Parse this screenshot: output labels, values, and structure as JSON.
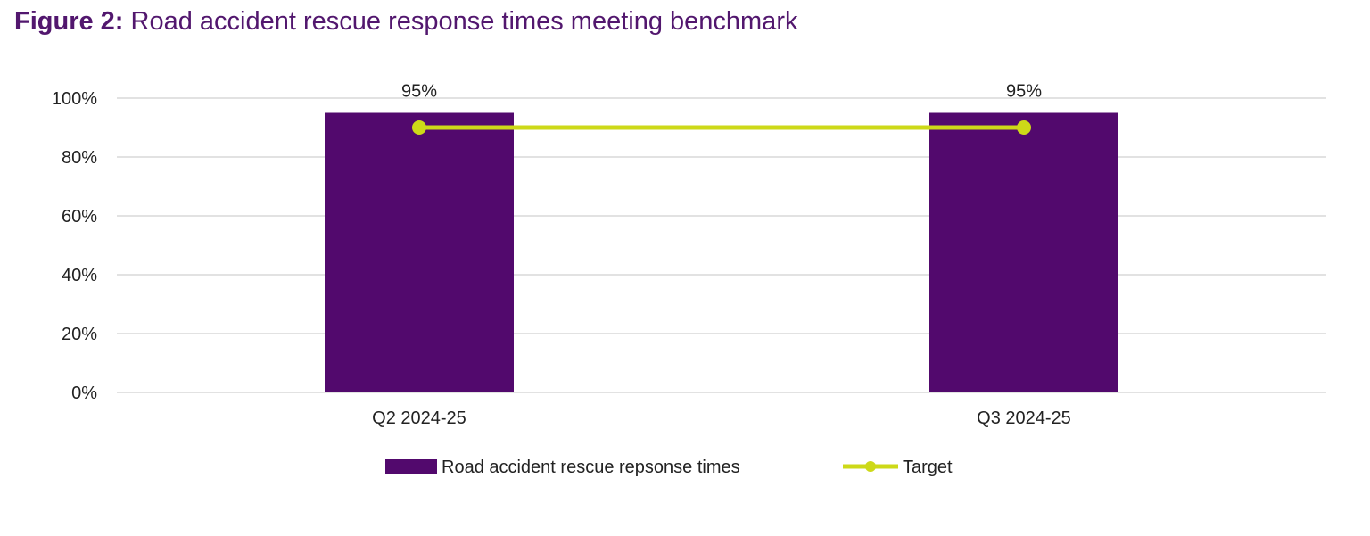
{
  "figure": {
    "number": "Figure 2:",
    "title": "Road accident rescue response times meeting benchmark"
  },
  "chart_data": {
    "type": "bar",
    "categories": [
      "Q2 2024-25",
      "Q3 2024-25"
    ],
    "series": [
      {
        "name": "Road accident rescue repsonse times",
        "kind": "bar",
        "values": [
          95,
          95
        ],
        "data_labels": [
          "95%",
          "95%"
        ],
        "color": "#52096d"
      },
      {
        "name": "Target",
        "kind": "line",
        "values": [
          90,
          90
        ],
        "color": "#cdd918"
      }
    ],
    "ylim": [
      0,
      100
    ],
    "yticks": [
      0,
      20,
      40,
      60,
      80,
      100
    ],
    "ytick_labels": [
      "0%",
      "20%",
      "40%",
      "60%",
      "80%",
      "100%"
    ],
    "xlabel": "",
    "ylabel": "",
    "grid": true,
    "legend_position": "bottom-center",
    "colors": {
      "grid": "#d9d9d9",
      "axis": "#d9d9d9"
    }
  }
}
